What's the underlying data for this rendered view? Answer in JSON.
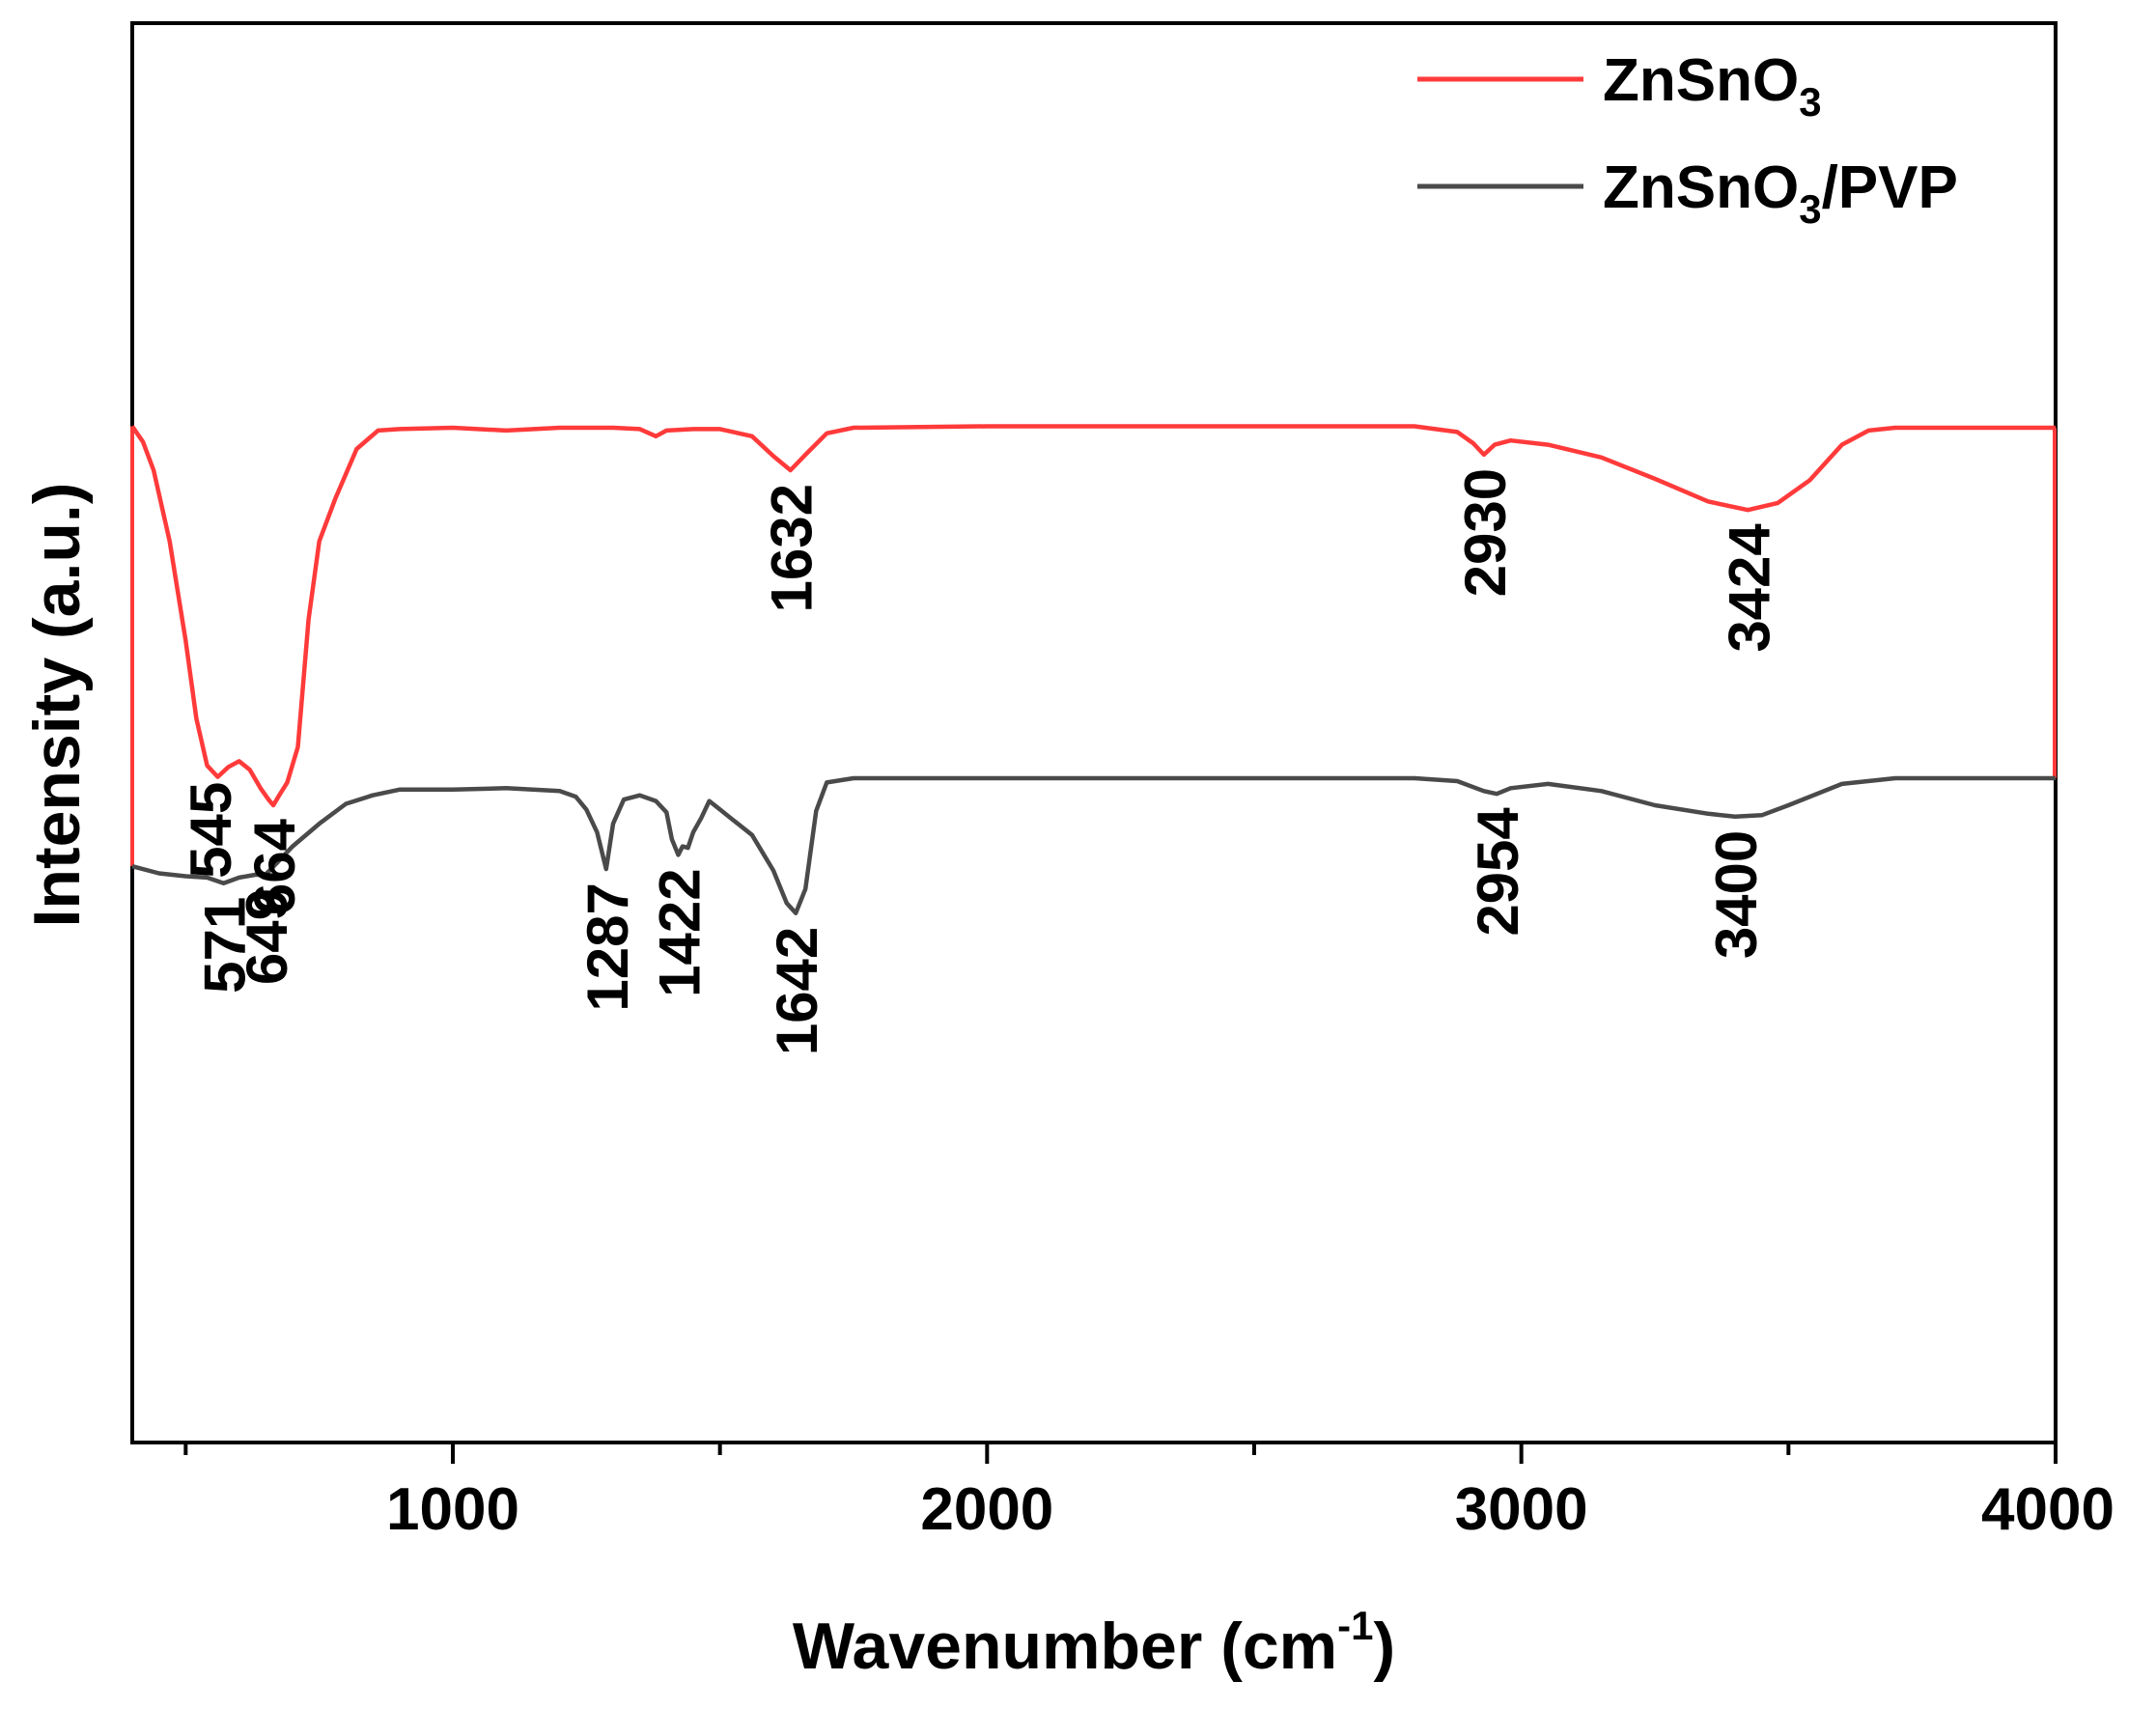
{
  "chart_data": {
    "type": "line",
    "title": "",
    "xlabel": "Wavenumber (cm",
    "xlabel_sup": "-1",
    "xlabel_close": ")",
    "ylabel": "Intensity (a.u.)",
    "xlim": [
      400,
      4000
    ],
    "ylim": [
      0,
      100
    ],
    "xticks": [
      1000,
      2000,
      3000,
      4000
    ],
    "xtick_labels": [
      "1000",
      "2000",
      "3000",
      "4000"
    ],
    "minor_xticks": [
      500,
      1500,
      2500,
      3500
    ],
    "yticks_shown": false,
    "grid": false,
    "legend_position": "top-right",
    "series": [
      {
        "name": "ZnSnO3",
        "legend": {
          "main": "ZnSnO",
          "sub": "3",
          "tail": ""
        },
        "color": "#ff3a3a",
        "points": [
          [
            400,
            71.6
          ],
          [
            420,
            70.5
          ],
          [
            440,
            68.5
          ],
          [
            470,
            63.5
          ],
          [
            500,
            56.5
          ],
          [
            520,
            51
          ],
          [
            540,
            47.7
          ],
          [
            560,
            46.9
          ],
          [
            580,
            47.6
          ],
          [
            600,
            48
          ],
          [
            620,
            47.4
          ],
          [
            640,
            46.1
          ],
          [
            655,
            45.3
          ],
          [
            664,
            44.9
          ],
          [
            675,
            45.6
          ],
          [
            690,
            46.5
          ],
          [
            710,
            49
          ],
          [
            730,
            58
          ],
          [
            750,
            63.5
          ],
          [
            780,
            66.5
          ],
          [
            820,
            70
          ],
          [
            860,
            71.3
          ],
          [
            900,
            71.4
          ],
          [
            1000,
            71.5
          ],
          [
            1100,
            71.3
          ],
          [
            1200,
            71.5
          ],
          [
            1300,
            71.5
          ],
          [
            1350,
            71.4
          ],
          [
            1380,
            70.9
          ],
          [
            1400,
            71.3
          ],
          [
            1450,
            71.4
          ],
          [
            1500,
            71.4
          ],
          [
            1560,
            70.9
          ],
          [
            1600,
            69.5
          ],
          [
            1632,
            68.5
          ],
          [
            1660,
            69.6
          ],
          [
            1700,
            71.1
          ],
          [
            1750,
            71.5
          ],
          [
            2000,
            71.6
          ],
          [
            2500,
            71.6
          ],
          [
            2800,
            71.6
          ],
          [
            2880,
            71.2
          ],
          [
            2910,
            70.4
          ],
          [
            2930,
            69.6
          ],
          [
            2950,
            70.3
          ],
          [
            2980,
            70.6
          ],
          [
            3050,
            70.3
          ],
          [
            3150,
            69.4
          ],
          [
            3250,
            67.9
          ],
          [
            3350,
            66.3
          ],
          [
            3424,
            65.7
          ],
          [
            3480,
            66.2
          ],
          [
            3540,
            67.8
          ],
          [
            3600,
            70.3
          ],
          [
            3650,
            71.3
          ],
          [
            3700,
            71.5
          ],
          [
            3800,
            71.5
          ],
          [
            4000,
            71.5
          ]
        ]
      },
      {
        "name": "ZnSnO3/PVP",
        "legend": {
          "main": "ZnSnO",
          "sub": "3",
          "tail": "/PVP"
        },
        "color": "#4a4a4a",
        "points": [
          [
            400,
            40.6
          ],
          [
            450,
            40.1
          ],
          [
            500,
            39.9
          ],
          [
            540,
            39.8
          ],
          [
            571,
            39.4
          ],
          [
            600,
            39.8
          ],
          [
            630,
            40
          ],
          [
            649,
            40
          ],
          [
            670,
            40.8
          ],
          [
            700,
            42
          ],
          [
            750,
            43.6
          ],
          [
            800,
            45
          ],
          [
            850,
            45.6
          ],
          [
            900,
            46
          ],
          [
            1000,
            46
          ],
          [
            1100,
            46.1
          ],
          [
            1200,
            45.9
          ],
          [
            1230,
            45.5
          ],
          [
            1250,
            44.6
          ],
          [
            1270,
            43
          ],
          [
            1287,
            40.4
          ],
          [
            1300,
            43.6
          ],
          [
            1320,
            45.3
          ],
          [
            1350,
            45.6
          ],
          [
            1380,
            45.2
          ],
          [
            1400,
            44.4
          ],
          [
            1410,
            42.5
          ],
          [
            1422,
            41.4
          ],
          [
            1430,
            42
          ],
          [
            1440,
            41.9
          ],
          [
            1450,
            43
          ],
          [
            1465,
            44
          ],
          [
            1480,
            45.2
          ],
          [
            1500,
            44.6
          ],
          [
            1520,
            44
          ],
          [
            1560,
            42.8
          ],
          [
            1600,
            40.3
          ],
          [
            1625,
            38
          ],
          [
            1642,
            37.3
          ],
          [
            1660,
            39
          ],
          [
            1680,
            44.5
          ],
          [
            1700,
            46.5
          ],
          [
            1750,
            46.8
          ],
          [
            2000,
            46.8
          ],
          [
            2500,
            46.8
          ],
          [
            2800,
            46.8
          ],
          [
            2880,
            46.6
          ],
          [
            2930,
            45.9
          ],
          [
            2954,
            45.7
          ],
          [
            2980,
            46.1
          ],
          [
            3050,
            46.4
          ],
          [
            3150,
            45.9
          ],
          [
            3250,
            44.9
          ],
          [
            3350,
            44.3
          ],
          [
            3400,
            44.1
          ],
          [
            3450,
            44.2
          ],
          [
            3500,
            44.9
          ],
          [
            3600,
            46.4
          ],
          [
            3700,
            46.8
          ],
          [
            4000,
            46.8
          ]
        ]
      }
    ],
    "peak_labels": [
      {
        "text": "545",
        "series": 0,
        "x": 545
      },
      {
        "text": "664",
        "series": 0,
        "x": 664
      },
      {
        "text": "1632",
        "series": 0,
        "x": 1632
      },
      {
        "text": "2930",
        "series": 0,
        "x": 2930
      },
      {
        "text": "3424",
        "series": 0,
        "x": 3424
      },
      {
        "text": "571",
        "series": 1,
        "x": 571
      },
      {
        "text": "649",
        "series": 1,
        "x": 649
      },
      {
        "text": "1287",
        "series": 1,
        "x": 1287
      },
      {
        "text": "1422",
        "series": 1,
        "x": 1422
      },
      {
        "text": "1642",
        "series": 1,
        "x": 1642
      },
      {
        "text": "2954",
        "series": 1,
        "x": 2954
      },
      {
        "text": "3400",
        "series": 1,
        "x": 3400
      }
    ]
  }
}
